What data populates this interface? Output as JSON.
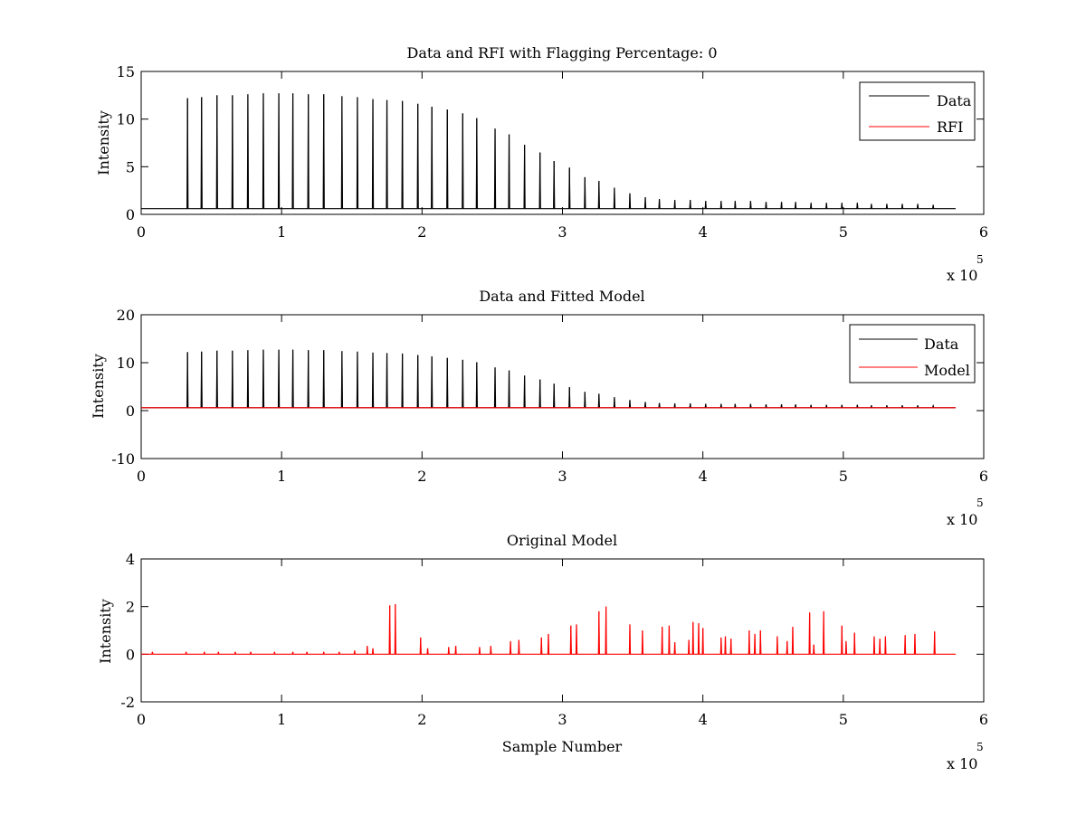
{
  "colors": {
    "data": "#000000",
    "rfi": "#ff0000",
    "model": "#ff0000",
    "background": "#ffffff"
  },
  "chart_data": [
    {
      "type": "line",
      "title": "Data and RFI with Flagging Percentage: 0",
      "xlabel": "",
      "ylabel": "Intensity",
      "xlim": [
        0,
        6
      ],
      "ylim": [
        0,
        15
      ],
      "x_ticks": [
        "0",
        "1",
        "2",
        "3",
        "4",
        "5",
        "6"
      ],
      "y_ticks": [
        "0",
        "5",
        "10",
        "15"
      ],
      "x_exponent": {
        "base": "x 10",
        "power": "5"
      },
      "legend": {
        "position": "top-right",
        "entries": [
          "Data",
          "RFI"
        ]
      },
      "baseline": 0.6,
      "series": [
        {
          "name": "Data",
          "color": "#000000",
          "spike_positions": [
            0.33,
            0.43,
            0.54,
            0.65,
            0.76,
            0.87,
            0.98,
            1.08,
            1.19,
            1.3,
            1.43,
            1.54,
            1.65,
            1.75,
            1.86,
            1.97,
            2.07,
            2.18,
            2.29,
            2.39,
            2.52,
            2.62,
            2.73,
            2.84,
            2.94,
            3.05,
            3.16,
            3.26,
            3.37,
            3.48,
            3.59,
            3.69,
            3.8,
            3.91,
            4.02,
            4.13,
            4.23,
            4.34,
            4.45,
            4.56,
            4.66,
            4.77,
            4.88,
            4.99,
            5.1,
            5.2,
            5.31,
            5.42,
            5.53,
            5.64
          ],
          "spike_heights": [
            12.2,
            12.3,
            12.5,
            12.5,
            12.6,
            12.7,
            12.7,
            12.7,
            12.6,
            12.6,
            12.4,
            12.3,
            12.1,
            12.0,
            11.9,
            11.6,
            11.3,
            11.0,
            10.6,
            10.1,
            9.0,
            8.4,
            7.3,
            6.5,
            5.6,
            4.9,
            3.9,
            3.5,
            2.8,
            2.2,
            1.8,
            1.6,
            1.5,
            1.5,
            1.4,
            1.4,
            1.4,
            1.4,
            1.3,
            1.3,
            1.3,
            1.2,
            1.2,
            1.2,
            1.2,
            1.1,
            1.1,
            1.1,
            1.1,
            1.0
          ]
        },
        {
          "name": "RFI",
          "color": "#ff0000",
          "values": []
        }
      ]
    },
    {
      "type": "line",
      "title": "Data and Fitted Model",
      "xlabel": "",
      "ylabel": "Intensity",
      "xlim": [
        0,
        6
      ],
      "ylim": [
        -10,
        20
      ],
      "x_ticks": [
        "0",
        "1",
        "2",
        "3",
        "4",
        "5",
        "6"
      ],
      "y_ticks": [
        "-10",
        "0",
        "10",
        "20"
      ],
      "x_exponent": {
        "base": "x 10",
        "power": "5"
      },
      "legend": {
        "position": "top-right",
        "entries": [
          "Data",
          "Model"
        ]
      },
      "baseline": 0.6,
      "series": [
        {
          "name": "Data",
          "color": "#000000",
          "spike_positions": [
            0.33,
            0.43,
            0.54,
            0.65,
            0.76,
            0.87,
            0.98,
            1.08,
            1.19,
            1.3,
            1.43,
            1.54,
            1.65,
            1.75,
            1.86,
            1.97,
            2.07,
            2.18,
            2.29,
            2.39,
            2.52,
            2.62,
            2.73,
            2.84,
            2.94,
            3.05,
            3.16,
            3.26,
            3.37,
            3.48,
            3.59,
            3.69,
            3.8,
            3.91,
            4.02,
            4.13,
            4.23,
            4.34,
            4.45,
            4.56,
            4.66,
            4.77,
            4.88,
            4.99,
            5.1,
            5.2,
            5.31,
            5.42,
            5.53,
            5.64
          ],
          "spike_heights": [
            12.2,
            12.3,
            12.5,
            12.5,
            12.6,
            12.7,
            12.7,
            12.7,
            12.6,
            12.6,
            12.4,
            12.3,
            12.1,
            12.0,
            11.9,
            11.6,
            11.3,
            11.0,
            10.6,
            10.1,
            9.0,
            8.4,
            7.3,
            6.5,
            5.6,
            4.9,
            3.9,
            3.5,
            2.8,
            2.2,
            1.8,
            1.6,
            1.5,
            1.5,
            1.4,
            1.4,
            1.4,
            1.4,
            1.3,
            1.3,
            1.3,
            1.2,
            1.2,
            1.2,
            1.2,
            1.1,
            1.1,
            1.1,
            1.1,
            1.0
          ]
        },
        {
          "name": "Model",
          "color": "#ff0000",
          "value": 0.6,
          "x_range": [
            0,
            5.8
          ]
        }
      ]
    },
    {
      "type": "line",
      "title": "Original Model",
      "xlabel": "Sample Number",
      "ylabel": "Intensity",
      "xlim": [
        0,
        6
      ],
      "ylim": [
        -2,
        4
      ],
      "x_ticks": [
        "0",
        "1",
        "2",
        "3",
        "4",
        "5",
        "6"
      ],
      "y_ticks": [
        "-2",
        "0",
        "2",
        "4"
      ],
      "x_exponent": {
        "base": "x 10",
        "power": "5"
      },
      "baseline": 0.0,
      "series": [
        {
          "name": "",
          "color": "#ff0000",
          "spike_positions": [
            0.08,
            0.32,
            0.45,
            0.55,
            0.67,
            0.78,
            0.95,
            1.08,
            1.18,
            1.3,
            1.41,
            1.52,
            1.61,
            1.65,
            1.77,
            1.81,
            1.99,
            2.04,
            2.19,
            2.24,
            2.41,
            2.49,
            2.63,
            2.69,
            2.85,
            2.9,
            3.06,
            3.1,
            3.26,
            3.31,
            3.48,
            3.57,
            3.71,
            3.76,
            3.8,
            3.9,
            3.93,
            3.97,
            4.0,
            4.13,
            4.16,
            4.2,
            4.33,
            4.37,
            4.41,
            4.53,
            4.6,
            4.64,
            4.76,
            4.79,
            4.86,
            4.99,
            5.02,
            5.08,
            5.22,
            5.26,
            5.3,
            5.44,
            5.51,
            5.65
          ],
          "spike_heights": [
            0.1,
            0.1,
            0.1,
            0.1,
            0.1,
            0.1,
            0.1,
            0.1,
            0.1,
            0.1,
            0.1,
            0.15,
            0.35,
            0.25,
            2.05,
            2.1,
            0.7,
            0.25,
            0.3,
            0.35,
            0.3,
            0.35,
            0.55,
            0.6,
            0.7,
            0.85,
            1.2,
            1.25,
            1.8,
            2.0,
            1.25,
            1.0,
            1.15,
            1.2,
            0.5,
            0.6,
            1.35,
            1.3,
            1.1,
            0.7,
            0.75,
            0.65,
            1.0,
            0.85,
            1.0,
            0.75,
            0.55,
            1.15,
            1.75,
            0.4,
            1.8,
            1.2,
            0.55,
            0.9,
            0.75,
            0.65,
            0.75,
            0.8,
            0.85,
            0.95
          ]
        }
      ]
    }
  ]
}
